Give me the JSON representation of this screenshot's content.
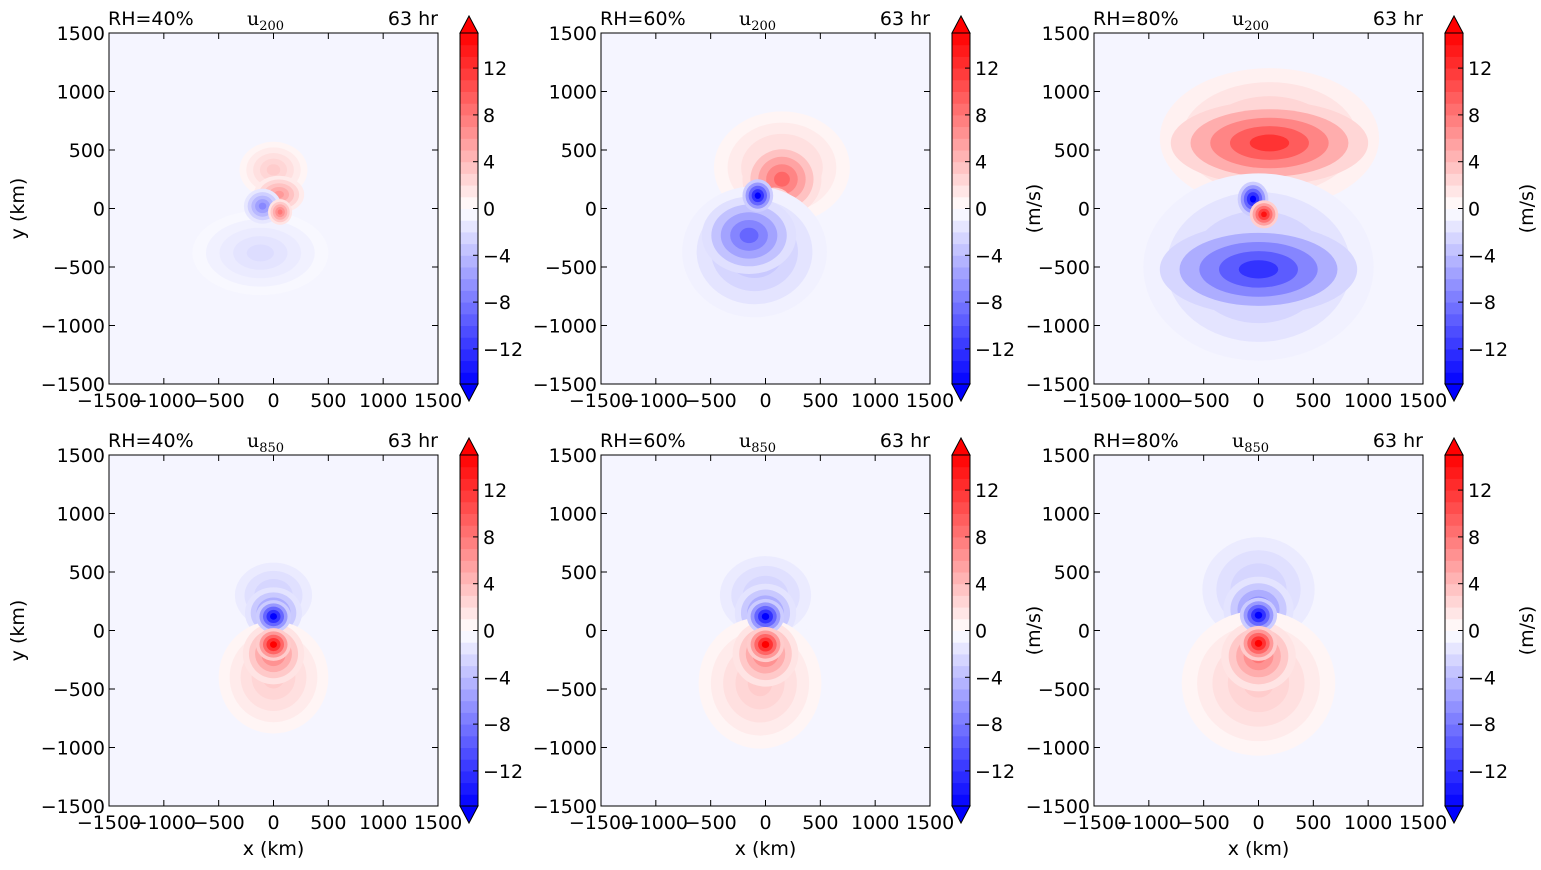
{
  "figure": {
    "colormap": "bwr",
    "colors": {
      "negative": "#0000ff",
      "neutral": "#ffffff",
      "positive": "#ff0000",
      "axes": "#000000"
    }
  },
  "chart_data": [
    {
      "type": "heatmap",
      "panel": "u200-rh40",
      "title_left": "RH=40%",
      "title_main": "u",
      "title_sub": "200",
      "title_right": "63 hr",
      "xlabel": "",
      "ylabel": "y (km)",
      "colorbar_label": "",
      "xlim": [
        -1500,
        1500
      ],
      "ylim": [
        -1500,
        1500
      ],
      "xticks": [
        "−1500",
        "−1000",
        "−500",
        "0",
        "500",
        "1000",
        "1500"
      ],
      "yticks": [
        "−1500",
        "−1000",
        "−500",
        "0",
        "500",
        "1000",
        "1500"
      ],
      "colorbar_range": [
        -15,
        15
      ],
      "colorbar_extend": "both",
      "colorbar_ticks": [
        "−12",
        "−8",
        "−4",
        "0",
        "4",
        "8",
        "12"
      ],
      "levels": [
        -15,
        -14,
        -13,
        -12,
        -11,
        -10,
        -9,
        -8,
        -7,
        -6,
        -5,
        -4,
        -3,
        -2,
        -1,
        0,
        1,
        2,
        3,
        4,
        5,
        6,
        7,
        8,
        9,
        10,
        11,
        12,
        13,
        14,
        15
      ],
      "features": [
        {
          "x": 0,
          "y": 330,
          "rx": 310,
          "ry": 240,
          "value": 3
        },
        {
          "x": 50,
          "y": 120,
          "rx": 230,
          "ry": 160,
          "value": 6
        },
        {
          "x": -120,
          "y": -380,
          "rx": 620,
          "ry": 360,
          "value": -2
        },
        {
          "x": -100,
          "y": 20,
          "rx": 170,
          "ry": 150,
          "value": -7
        },
        {
          "x": 60,
          "y": -30,
          "rx": 110,
          "ry": 110,
          "value": 8
        }
      ]
    },
    {
      "type": "heatmap",
      "panel": "u200-rh60",
      "title_left": "RH=60%",
      "title_main": "u",
      "title_sub": "200",
      "title_right": "63 hr",
      "xlabel": "",
      "ylabel": "",
      "colorbar_label": "(m/s)",
      "xlim": [
        -1500,
        1500
      ],
      "ylim": [
        -1500,
        1500
      ],
      "xticks": [
        "−1500",
        "−1000",
        "−500",
        "0",
        "500",
        "1000",
        "1500"
      ],
      "yticks": [
        "−1500",
        "−1000",
        "−500",
        "0",
        "500",
        "1000",
        "1500"
      ],
      "colorbar_range": [
        -15,
        15
      ],
      "colorbar_extend": "both",
      "colorbar_ticks": [
        "−12",
        "−8",
        "−4",
        "0",
        "4",
        "8",
        "12"
      ],
      "levels": [
        -15,
        -14,
        -13,
        -12,
        -11,
        -10,
        -9,
        -8,
        -7,
        -6,
        -5,
        -4,
        -3,
        -2,
        -1,
        0,
        1,
        2,
        3,
        4,
        5,
        6,
        7,
        8,
        9,
        10,
        11,
        12,
        13,
        14,
        15
      ],
      "features": [
        {
          "x": 150,
          "y": 350,
          "rx": 620,
          "ry": 480,
          "value": 3
        },
        {
          "x": 150,
          "y": 250,
          "rx": 360,
          "ry": 320,
          "value": 9
        },
        {
          "x": 80,
          "y": 0,
          "rx": 180,
          "ry": 180,
          "value": 14
        },
        {
          "x": -100,
          "y": -370,
          "rx": 660,
          "ry": 560,
          "value": -4
        },
        {
          "x": -150,
          "y": -230,
          "rx": 430,
          "ry": 330,
          "value": -9
        },
        {
          "x": -70,
          "y": 110,
          "rx": 140,
          "ry": 140,
          "value": -15
        }
      ]
    },
    {
      "type": "heatmap",
      "panel": "u200-rh80",
      "title_left": "RH=80%",
      "title_main": "u",
      "title_sub": "200",
      "title_right": "63 hr",
      "xlabel": "",
      "ylabel": "",
      "colorbar_label": "(m/s)",
      "xlim": [
        -1500,
        1500
      ],
      "ylim": [
        -1500,
        1500
      ],
      "xticks": [
        "−1500",
        "−1000",
        "−500",
        "0",
        "500",
        "1000",
        "1500"
      ],
      "yticks": [
        "−1500",
        "−1000",
        "−500",
        "0",
        "500",
        "1000",
        "1500"
      ],
      "colorbar_range": [
        -15,
        15
      ],
      "colorbar_extend": "both",
      "colorbar_ticks": [
        "−12",
        "−8",
        "−4",
        "0",
        "4",
        "8",
        "12"
      ],
      "levels": [
        -15,
        -14,
        -13,
        -12,
        -11,
        -10,
        -9,
        -8,
        -7,
        -6,
        -5,
        -4,
        -3,
        -2,
        -1,
        0,
        1,
        2,
        3,
        4,
        5,
        6,
        7,
        8,
        9,
        10,
        11,
        12,
        13,
        14,
        15
      ],
      "features": [
        {
          "x": 100,
          "y": 600,
          "rx": 1000,
          "ry": 600,
          "value": 4
        },
        {
          "x": 100,
          "y": 560,
          "rx": 900,
          "ry": 360,
          "value": 12
        },
        {
          "x": 0,
          "y": -500,
          "rx": 1050,
          "ry": 800,
          "value": -4
        },
        {
          "x": 0,
          "y": -520,
          "rx": 900,
          "ry": 390,
          "value": -12
        },
        {
          "x": -50,
          "y": 80,
          "rx": 140,
          "ry": 150,
          "value": -15
        },
        {
          "x": 50,
          "y": -50,
          "rx": 130,
          "ry": 120,
          "value": 14
        }
      ]
    },
    {
      "type": "heatmap",
      "panel": "u850-rh40",
      "title_left": "RH=40%",
      "title_main": "u",
      "title_sub": "850",
      "title_right": "63 hr",
      "xlabel": "x (km)",
      "ylabel": "y (km)",
      "colorbar_label": "",
      "xlim": [
        -1500,
        1500
      ],
      "ylim": [
        -1500,
        1500
      ],
      "xticks": [
        "−1500",
        "−1000",
        "−500",
        "0",
        "500",
        "1000",
        "1500"
      ],
      "yticks": [
        "−1500",
        "−1000",
        "−500",
        "0",
        "500",
        "1000",
        "1500"
      ],
      "colorbar_range": [
        -15,
        15
      ],
      "colorbar_extend": "both",
      "colorbar_ticks": [
        "−12",
        "−8",
        "−4",
        "0",
        "4",
        "8",
        "12"
      ],
      "levels": [
        -15,
        -14,
        -13,
        -12,
        -11,
        -10,
        -9,
        -8,
        -7,
        -6,
        -5,
        -4,
        -3,
        -2,
        -1,
        0,
        1,
        2,
        3,
        4,
        5,
        6,
        7,
        8,
        9,
        10,
        11,
        12,
        13,
        14,
        15
      ],
      "features": [
        {
          "x": 0,
          "y": 300,
          "rx": 440,
          "ry": 350,
          "value": -3
        },
        {
          "x": 0,
          "y": 150,
          "rx": 260,
          "ry": 220,
          "value": -8
        },
        {
          "x": 0,
          "y": -400,
          "rx": 500,
          "ry": 480,
          "value": 3
        },
        {
          "x": 0,
          "y": -200,
          "rx": 280,
          "ry": 260,
          "value": 8
        },
        {
          "x": 0,
          "y": 120,
          "rx": 160,
          "ry": 140,
          "value": -15
        },
        {
          "x": 0,
          "y": -120,
          "rx": 160,
          "ry": 140,
          "value": 15
        }
      ]
    },
    {
      "type": "heatmap",
      "panel": "u850-rh60",
      "title_left": "RH=60%",
      "title_main": "u",
      "title_sub": "850",
      "title_right": "63 hr",
      "xlabel": "x (km)",
      "ylabel": "",
      "colorbar_label": "(m/s)",
      "xlim": [
        -1500,
        1500
      ],
      "ylim": [
        -1500,
        1500
      ],
      "xticks": [
        "−1500",
        "−1000",
        "−500",
        "0",
        "500",
        "1000",
        "1500"
      ],
      "yticks": [
        "−1500",
        "−1000",
        "−500",
        "0",
        "500",
        "1000",
        "1500"
      ],
      "colorbar_range": [
        -15,
        15
      ],
      "colorbar_extend": "both",
      "colorbar_ticks": [
        "−12",
        "−8",
        "−4",
        "0",
        "4",
        "8",
        "12"
      ],
      "levels": [
        -15,
        -14,
        -13,
        -12,
        -11,
        -10,
        -9,
        -8,
        -7,
        -6,
        -5,
        -4,
        -3,
        -2,
        -1,
        0,
        1,
        2,
        3,
        4,
        5,
        6,
        7,
        8,
        9,
        10,
        11,
        12,
        13,
        14,
        15
      ],
      "features": [
        {
          "x": 0,
          "y": 300,
          "rx": 520,
          "ry": 420,
          "value": -3
        },
        {
          "x": 0,
          "y": 150,
          "rx": 280,
          "ry": 250,
          "value": -8
        },
        {
          "x": -50,
          "y": -450,
          "rx": 560,
          "ry": 560,
          "value": 3
        },
        {
          "x": 0,
          "y": -200,
          "rx": 300,
          "ry": 280,
          "value": 8
        },
        {
          "x": 0,
          "y": 120,
          "rx": 170,
          "ry": 150,
          "value": -15
        },
        {
          "x": 0,
          "y": -120,
          "rx": 170,
          "ry": 150,
          "value": 15
        }
      ]
    },
    {
      "type": "heatmap",
      "panel": "u850-rh80",
      "title_left": "RH=80%",
      "title_main": "u",
      "title_sub": "850",
      "title_right": "63 hr",
      "xlabel": "x (km)",
      "ylabel": "",
      "colorbar_label": "(m/s)",
      "xlim": [
        -1500,
        1500
      ],
      "ylim": [
        -1500,
        1500
      ],
      "xticks": [
        "−1500",
        "−1000",
        "−500",
        "0",
        "500",
        "1000",
        "1500"
      ],
      "yticks": [
        "−1500",
        "−1000",
        "−500",
        "0",
        "500",
        "1000",
        "1500"
      ],
      "colorbar_range": [
        -15,
        15
      ],
      "colorbar_extend": "both",
      "colorbar_ticks": [
        "−12",
        "−8",
        "−4",
        "0",
        "4",
        "8",
        "12"
      ],
      "levels": [
        -15,
        -14,
        -13,
        -12,
        -11,
        -10,
        -9,
        -8,
        -7,
        -6,
        -5,
        -4,
        -3,
        -2,
        -1,
        0,
        1,
        2,
        3,
        4,
        5,
        6,
        7,
        8,
        9,
        10,
        11,
        12,
        13,
        14,
        15
      ],
      "features": [
        {
          "x": 0,
          "y": 350,
          "rx": 640,
          "ry": 560,
          "value": -3
        },
        {
          "x": 0,
          "y": 180,
          "rx": 320,
          "ry": 280,
          "value": -8
        },
        {
          "x": 0,
          "y": -450,
          "rx": 700,
          "ry": 620,
          "value": 3
        },
        {
          "x": 0,
          "y": -220,
          "rx": 340,
          "ry": 300,
          "value": 8
        },
        {
          "x": 0,
          "y": 130,
          "rx": 170,
          "ry": 150,
          "value": -15
        },
        {
          "x": 0,
          "y": -110,
          "rx": 170,
          "ry": 150,
          "value": 15
        }
      ]
    }
  ]
}
